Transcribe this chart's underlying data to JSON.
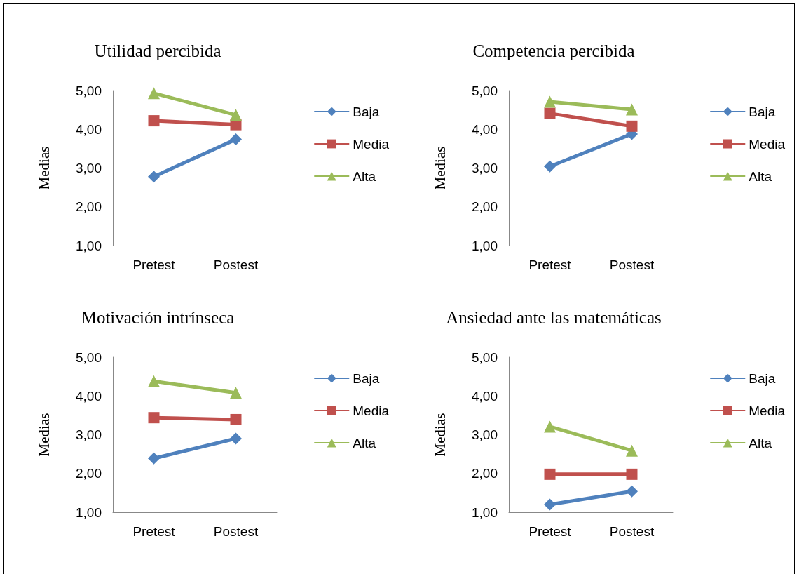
{
  "chart_data": [
    {
      "type": "line",
      "title": "Utilidad percibida",
      "ylabel": "Medias",
      "categories": [
        "Pretest",
        "Postest"
      ],
      "series": [
        {
          "name": "Baja",
          "color": "#4f81bd",
          "marker": "diamond",
          "values": [
            2.78,
            3.74
          ]
        },
        {
          "name": "Media",
          "color": "#c0504d",
          "marker": "square",
          "values": [
            4.22,
            4.12
          ]
        },
        {
          "name": "Alta",
          "color": "#9bbb59",
          "marker": "triangle",
          "values": [
            4.93,
            4.37
          ]
        }
      ],
      "ylim": [
        1,
        5
      ],
      "yticks": [
        {
          "value": 1,
          "label": "1,00"
        },
        {
          "value": 2,
          "label": "2,00"
        },
        {
          "value": 3,
          "label": "3,00"
        },
        {
          "value": 4,
          "label": "4,00"
        },
        {
          "value": 5,
          "label": "5,00"
        }
      ],
      "grid": false,
      "legend": "right"
    },
    {
      "type": "line",
      "title": "Competencia percibida",
      "ylabel": "Medias",
      "categories": [
        "Pretest",
        "Postest"
      ],
      "series": [
        {
          "name": "Baja",
          "color": "#4f81bd",
          "marker": "diamond",
          "values": [
            3.04,
            3.88
          ]
        },
        {
          "name": "Media",
          "color": "#c0504d",
          "marker": "square",
          "values": [
            4.41,
            4.08
          ]
        },
        {
          "name": "Alta",
          "color": "#9bbb59",
          "marker": "triangle",
          "values": [
            4.71,
            4.51
          ]
        }
      ],
      "ylim": [
        1,
        5
      ],
      "yticks": [
        {
          "value": 1,
          "label": "1,00"
        },
        {
          "value": 2,
          "label": "2,00"
        },
        {
          "value": 3,
          "label": "3,00"
        },
        {
          "value": 4,
          "label": "4,00"
        },
        {
          "value": 5,
          "label": "5,00"
        }
      ],
      "grid": false,
      "legend": "right"
    },
    {
      "type": "line",
      "title": "Motivación intrínseca",
      "ylabel": "Medias",
      "categories": [
        "Pretest",
        "Postest"
      ],
      "series": [
        {
          "name": "Baja",
          "color": "#4f81bd",
          "marker": "diamond",
          "values": [
            2.39,
            2.9
          ]
        },
        {
          "name": "Media",
          "color": "#c0504d",
          "marker": "square",
          "values": [
            3.44,
            3.39
          ]
        },
        {
          "name": "Alta",
          "color": "#9bbb59",
          "marker": "triangle",
          "values": [
            4.38,
            4.08
          ]
        }
      ],
      "ylim": [
        1,
        5
      ],
      "yticks": [
        {
          "value": 1,
          "label": "1,00"
        },
        {
          "value": 2,
          "label": "2,00"
        },
        {
          "value": 3,
          "label": "3,00"
        },
        {
          "value": 4,
          "label": "4,00"
        },
        {
          "value": 5,
          "label": "5,00"
        }
      ],
      "grid": false,
      "legend": "right"
    },
    {
      "type": "line",
      "title": "Ansiedad ante las matemáticas",
      "ylabel": "Medias",
      "categories": [
        "Pretest",
        "Postest"
      ],
      "series": [
        {
          "name": "Baja",
          "color": "#4f81bd",
          "marker": "diamond",
          "values": [
            1.2,
            1.54
          ]
        },
        {
          "name": "Media",
          "color": "#c0504d",
          "marker": "square",
          "values": [
            1.98,
            1.98
          ]
        },
        {
          "name": "Alta",
          "color": "#9bbb59",
          "marker": "triangle",
          "values": [
            3.21,
            2.59
          ]
        }
      ],
      "ylim": [
        1,
        5
      ],
      "yticks": [
        {
          "value": 1,
          "label": "1,00"
        },
        {
          "value": 2,
          "label": "2,00"
        },
        {
          "value": 3,
          "label": "3,00"
        },
        {
          "value": 4,
          "label": "4,00"
        },
        {
          "value": 5,
          "label": "5,00"
        }
      ],
      "grid": false,
      "legend": "right"
    }
  ]
}
